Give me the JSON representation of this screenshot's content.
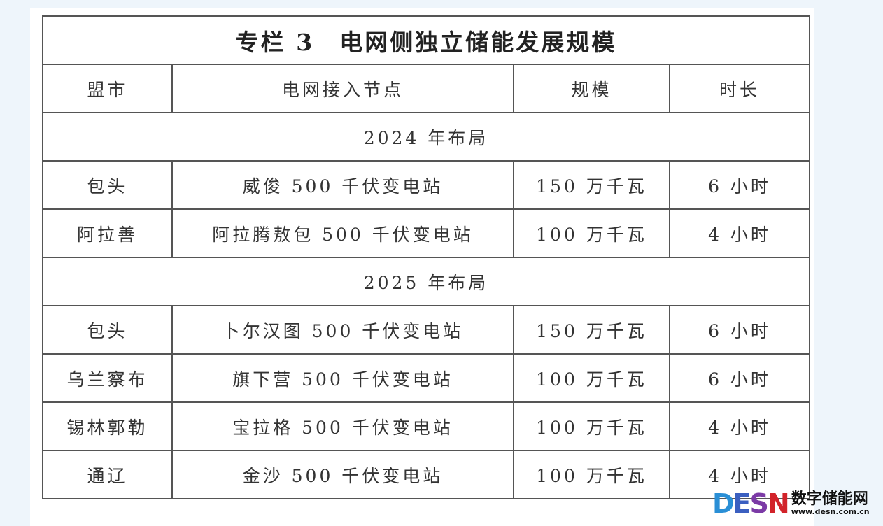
{
  "title": "专栏 3　电网侧独立储能发展规模",
  "headers": [
    "盟市",
    "电网接入节点",
    "规模",
    "时长"
  ],
  "sections": [
    {
      "label": "2024 年布局",
      "rows": [
        [
          "包头",
          "威俊 500 千伏变电站",
          "150 万千瓦",
          "6 小时"
        ],
        [
          "阿拉善",
          "阿拉腾敖包 500 千伏变电站",
          "100 万千瓦",
          "4 小时"
        ]
      ]
    },
    {
      "label": "2025 年布局",
      "rows": [
        [
          "包头",
          "卜尔汉图 500 千伏变电站",
          "150 万千瓦",
          "6 小时"
        ],
        [
          "乌兰察布",
          "旗下营 500 千伏变电站",
          "100 万千瓦",
          "6 小时"
        ],
        [
          "锡林郭勒",
          "宝拉格 500 千伏变电站",
          "100 万千瓦",
          "4 小时"
        ],
        [
          "通辽",
          "金沙 500 千伏变电站",
          "100 万千瓦",
          "4 小时"
        ]
      ]
    }
  ],
  "watermark": {
    "logo": "DESN",
    "name": "数字储能网",
    "url": "www.desn.com.cn"
  }
}
